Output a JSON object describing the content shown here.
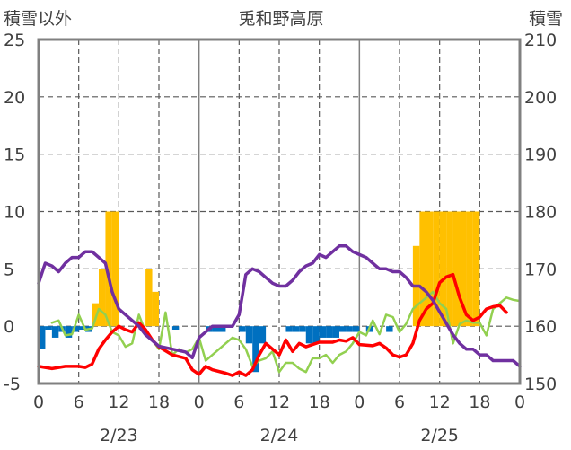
{
  "chart_data": {
    "type": "bar+line",
    "title": "兎和野高原",
    "left_axis_label": "積雪以外",
    "right_axis_label": "積雪",
    "left_ylim": [
      -5,
      25
    ],
    "left_ticks": [
      "25",
      "20",
      "15",
      "10",
      "5",
      "0",
      "-5"
    ],
    "right_ylim": [
      150,
      210
    ],
    "right_ticks": [
      "210",
      "200",
      "190",
      "180",
      "170",
      "160",
      "150"
    ],
    "x_range_hours": [
      0,
      72
    ],
    "x_ticks": [
      "0",
      "6",
      "12",
      "18",
      "0",
      "6",
      "12",
      "18",
      "0",
      "6",
      "12",
      "18",
      "0"
    ],
    "date_labels": [
      "2/23",
      "2/24",
      "2/25"
    ],
    "grid": true,
    "colors": {
      "snow_bars": "#ffc000",
      "negative_bars": "#0070c0",
      "red_line": "#ff0000",
      "green_line": "#92d050",
      "purple_line": "#7030a0",
      "frame": "#808080"
    },
    "bars": [
      {
        "x": 0,
        "y": -2
      },
      {
        "x": 1,
        "y": -0.3
      },
      {
        "x": 2,
        "y": -1
      },
      {
        "x": 3,
        "y": -0.5
      },
      {
        "x": 4,
        "y": -1
      },
      {
        "x": 5,
        "y": -0.5
      },
      {
        "x": 6,
        "y": -0.3
      },
      {
        "x": 7,
        "y": -0.5
      },
      {
        "x": 8,
        "y": 2
      },
      {
        "x": 9,
        "y": 5
      },
      {
        "x": 10,
        "y": 10
      },
      {
        "x": 11,
        "y": 10
      },
      {
        "x": 15,
        "y": -0.3
      },
      {
        "x": 16,
        "y": 5
      },
      {
        "x": 17,
        "y": 3
      },
      {
        "x": 20,
        "y": -0.3
      },
      {
        "x": 25,
        "y": -0.5
      },
      {
        "x": 26,
        "y": -0.5
      },
      {
        "x": 27,
        "y": -0.5
      },
      {
        "x": 30,
        "y": -0.5
      },
      {
        "x": 31,
        "y": -1.5
      },
      {
        "x": 32,
        "y": -4
      },
      {
        "x": 33,
        "y": -1.5
      },
      {
        "x": 37,
        "y": -0.5
      },
      {
        "x": 38,
        "y": -0.5
      },
      {
        "x": 39,
        "y": -0.5
      },
      {
        "x": 40,
        "y": -1.5
      },
      {
        "x": 41,
        "y": -1.5
      },
      {
        "x": 42,
        "y": -1
      },
      {
        "x": 43,
        "y": -1
      },
      {
        "x": 44,
        "y": -1
      },
      {
        "x": 45,
        "y": -0.5
      },
      {
        "x": 46,
        "y": -0.5
      },
      {
        "x": 47,
        "y": -0.5
      },
      {
        "x": 49,
        "y": -0.5
      },
      {
        "x": 52,
        "y": -0.5
      },
      {
        "x": 56,
        "y": 7
      },
      {
        "x": 57,
        "y": 10
      },
      {
        "x": 58,
        "y": 10
      },
      {
        "x": 59,
        "y": 10
      },
      {
        "x": 60,
        "y": 10
      },
      {
        "x": 61,
        "y": 10
      },
      {
        "x": 62,
        "y": 10
      },
      {
        "x": 63,
        "y": 10
      },
      {
        "x": 64,
        "y": 10
      },
      {
        "x": 65,
        "y": 10
      }
    ],
    "red_line": [
      {
        "x": 0,
        "y": -3.5
      },
      {
        "x": 2,
        "y": -3.7
      },
      {
        "x": 4,
        "y": -3.5
      },
      {
        "x": 6,
        "y": -3.5
      },
      {
        "x": 7,
        "y": -3.6
      },
      {
        "x": 8,
        "y": -3.3
      },
      {
        "x": 9,
        "y": -2
      },
      {
        "x": 10,
        "y": -1.2
      },
      {
        "x": 11,
        "y": -0.5
      },
      {
        "x": 12,
        "y": 0
      },
      {
        "x": 13,
        "y": -0.3
      },
      {
        "x": 14,
        "y": -0.5
      },
      {
        "x": 15,
        "y": 0.3
      },
      {
        "x": 16,
        "y": -0.3
      },
      {
        "x": 17,
        "y": -1.2
      },
      {
        "x": 18,
        "y": -1.8
      },
      {
        "x": 20,
        "y": -2.5
      },
      {
        "x": 22,
        "y": -2.8
      },
      {
        "x": 23,
        "y": -3.8
      },
      {
        "x": 24,
        "y": -4.2
      },
      {
        "x": 25,
        "y": -3.5
      },
      {
        "x": 26,
        "y": -3.8
      },
      {
        "x": 28,
        "y": -4.1
      },
      {
        "x": 29,
        "y": -4.3
      },
      {
        "x": 30,
        "y": -4
      },
      {
        "x": 31,
        "y": -4.3
      },
      {
        "x": 32,
        "y": -3.8
      },
      {
        "x": 33,
        "y": -2.5
      },
      {
        "x": 34,
        "y": -1.5
      },
      {
        "x": 35,
        "y": -2
      },
      {
        "x": 36,
        "y": -2.5
      },
      {
        "x": 37,
        "y": -1.2
      },
      {
        "x": 38,
        "y": -2.2
      },
      {
        "x": 39,
        "y": -1.5
      },
      {
        "x": 40,
        "y": -1.8
      },
      {
        "x": 42,
        "y": -1.4
      },
      {
        "x": 44,
        "y": -1.4
      },
      {
        "x": 45,
        "y": -1.2
      },
      {
        "x": 46,
        "y": -1.3
      },
      {
        "x": 47,
        "y": -1
      },
      {
        "x": 48,
        "y": -1.6
      },
      {
        "x": 50,
        "y": -1.7
      },
      {
        "x": 51,
        "y": -1.5
      },
      {
        "x": 52,
        "y": -1.9
      },
      {
        "x": 53,
        "y": -2.5
      },
      {
        "x": 54,
        "y": -2.7
      },
      {
        "x": 55,
        "y": -2.5
      },
      {
        "x": 56,
        "y": -1.5
      },
      {
        "x": 57,
        "y": 0.5
      },
      {
        "x": 58,
        "y": 1.5
      },
      {
        "x": 59,
        "y": 2
      },
      {
        "x": 60,
        "y": 3.8
      },
      {
        "x": 61,
        "y": 4.3
      },
      {
        "x": 62,
        "y": 4.5
      },
      {
        "x": 63,
        "y": 2.5
      },
      {
        "x": 64,
        "y": 1
      },
      {
        "x": 65,
        "y": 0.5
      },
      {
        "x": 66,
        "y": 0.8
      },
      {
        "x": 67,
        "y": 1.5
      },
      {
        "x": 68,
        "y": 1.7
      },
      {
        "x": 69,
        "y": 1.8
      },
      {
        "x": 70,
        "y": 1.2
      }
    ],
    "green_line": [
      {
        "x": 2,
        "y": 0.3
      },
      {
        "x": 3,
        "y": 0.5
      },
      {
        "x": 4,
        "y": -0.8
      },
      {
        "x": 5,
        "y": -0.7
      },
      {
        "x": 6,
        "y": 1
      },
      {
        "x": 7,
        "y": -0.3
      },
      {
        "x": 8,
        "y": -0.2
      },
      {
        "x": 9,
        "y": 1.5
      },
      {
        "x": 10,
        "y": 1
      },
      {
        "x": 11,
        "y": -0.5
      },
      {
        "x": 12,
        "y": -0.8
      },
      {
        "x": 13,
        "y": -1.8
      },
      {
        "x": 14,
        "y": -1.5
      },
      {
        "x": 15,
        "y": 1
      },
      {
        "x": 16,
        "y": -0.5
      },
      {
        "x": 17,
        "y": -1.2
      },
      {
        "x": 18,
        "y": -2
      },
      {
        "x": 19,
        "y": 1.2
      },
      {
        "x": 20,
        "y": -2.5
      },
      {
        "x": 21,
        "y": -2
      },
      {
        "x": 22,
        "y": -2.3
      },
      {
        "x": 23,
        "y": -2
      },
      {
        "x": 24,
        "y": -1
      },
      {
        "x": 25,
        "y": -3
      },
      {
        "x": 26,
        "y": -2.5
      },
      {
        "x": 28,
        "y": -1.5
      },
      {
        "x": 29,
        "y": -1
      },
      {
        "x": 30,
        "y": -1.2
      },
      {
        "x": 31,
        "y": -2
      },
      {
        "x": 32,
        "y": -3.5
      },
      {
        "x": 33,
        "y": -3
      },
      {
        "x": 34,
        "y": -2.8
      },
      {
        "x": 35,
        "y": -2.2
      },
      {
        "x": 36,
        "y": -4
      },
      {
        "x": 37,
        "y": -3.2
      },
      {
        "x": 38,
        "y": -3.2
      },
      {
        "x": 39,
        "y": -3.7
      },
      {
        "x": 40,
        "y": -4
      },
      {
        "x": 41,
        "y": -2.8
      },
      {
        "x": 42,
        "y": -2.8
      },
      {
        "x": 43,
        "y": -2.5
      },
      {
        "x": 44,
        "y": -3.2
      },
      {
        "x": 45,
        "y": -2.5
      },
      {
        "x": 46,
        "y": -2.2
      },
      {
        "x": 47,
        "y": -1.5
      },
      {
        "x": 48,
        "y": -0.5
      },
      {
        "x": 49,
        "y": -0.8
      },
      {
        "x": 50,
        "y": 0.5
      },
      {
        "x": 51,
        "y": -0.7
      },
      {
        "x": 52,
        "y": 1
      },
      {
        "x": 53,
        "y": 0.8
      },
      {
        "x": 54,
        "y": -0.5
      },
      {
        "x": 55,
        "y": 0.2
      },
      {
        "x": 56,
        "y": 1.5
      },
      {
        "x": 57,
        "y": 2
      },
      {
        "x": 58,
        "y": 2.5
      },
      {
        "x": 59,
        "y": 3
      },
      {
        "x": 60,
        "y": 2
      },
      {
        "x": 61,
        "y": 1.5
      },
      {
        "x": 62,
        "y": -1.5
      },
      {
        "x": 63,
        "y": 0.2
      },
      {
        "x": 64,
        "y": 0.5
      },
      {
        "x": 65,
        "y": 0.3
      },
      {
        "x": 66,
        "y": 0.3
      },
      {
        "x": 67,
        "y": -0.8
      },
      {
        "x": 68,
        "y": 1.5
      },
      {
        "x": 69,
        "y": 2
      },
      {
        "x": 70,
        "y": 2.5
      },
      {
        "x": 71,
        "y": 2.3
      },
      {
        "x": 72,
        "y": 2.2
      }
    ],
    "purple_line_snow_depth": [
      {
        "x": 0,
        "y": 167.5
      },
      {
        "x": 1,
        "y": 171
      },
      {
        "x": 2,
        "y": 170.5
      },
      {
        "x": 3,
        "y": 169.5
      },
      {
        "x": 4,
        "y": 171
      },
      {
        "x": 5,
        "y": 172
      },
      {
        "x": 6,
        "y": 172
      },
      {
        "x": 7,
        "y": 173
      },
      {
        "x": 8,
        "y": 173
      },
      {
        "x": 9,
        "y": 172
      },
      {
        "x": 10,
        "y": 171
      },
      {
        "x": 11,
        "y": 166
      },
      {
        "x": 12,
        "y": 163
      },
      {
        "x": 13,
        "y": 162
      },
      {
        "x": 14,
        "y": 161
      },
      {
        "x": 15,
        "y": 160
      },
      {
        "x": 16,
        "y": 158.5
      },
      {
        "x": 17,
        "y": 157.5
      },
      {
        "x": 18,
        "y": 156.5
      },
      {
        "x": 20,
        "y": 156
      },
      {
        "x": 22,
        "y": 155.5
      },
      {
        "x": 23,
        "y": 154.5
      },
      {
        "x": 24,
        "y": 158
      },
      {
        "x": 25,
        "y": 159
      },
      {
        "x": 26,
        "y": 160
      },
      {
        "x": 28,
        "y": 160
      },
      {
        "x": 29,
        "y": 160
      },
      {
        "x": 30,
        "y": 162
      },
      {
        "x": 31,
        "y": 169
      },
      {
        "x": 32,
        "y": 170
      },
      {
        "x": 33,
        "y": 169.5
      },
      {
        "x": 34,
        "y": 168.5
      },
      {
        "x": 35,
        "y": 167.5
      },
      {
        "x": 36,
        "y": 167
      },
      {
        "x": 37,
        "y": 167
      },
      {
        "x": 38,
        "y": 168
      },
      {
        "x": 39,
        "y": 169.5
      },
      {
        "x": 40,
        "y": 170.5
      },
      {
        "x": 41,
        "y": 171
      },
      {
        "x": 42,
        "y": 172.5
      },
      {
        "x": 43,
        "y": 172
      },
      {
        "x": 44,
        "y": 173
      },
      {
        "x": 45,
        "y": 174
      },
      {
        "x": 46,
        "y": 174
      },
      {
        "x": 47,
        "y": 173
      },
      {
        "x": 48,
        "y": 172.5
      },
      {
        "x": 49,
        "y": 172
      },
      {
        "x": 50,
        "y": 171
      },
      {
        "x": 51,
        "y": 170
      },
      {
        "x": 52,
        "y": 170
      },
      {
        "x": 53,
        "y": 169.5
      },
      {
        "x": 54,
        "y": 169.5
      },
      {
        "x": 55,
        "y": 168.5
      },
      {
        "x": 56,
        "y": 167
      },
      {
        "x": 57,
        "y": 167
      },
      {
        "x": 58,
        "y": 166
      },
      {
        "x": 59,
        "y": 164.5
      },
      {
        "x": 60,
        "y": 162.5
      },
      {
        "x": 61,
        "y": 160.5
      },
      {
        "x": 62,
        "y": 158.5
      },
      {
        "x": 63,
        "y": 157
      },
      {
        "x": 64,
        "y": 156
      },
      {
        "x": 65,
        "y": 156
      },
      {
        "x": 66,
        "y": 155
      },
      {
        "x": 67,
        "y": 155
      },
      {
        "x": 68,
        "y": 154
      },
      {
        "x": 69,
        "y": 154
      },
      {
        "x": 70,
        "y": 154
      },
      {
        "x": 71,
        "y": 154
      },
      {
        "x": 72,
        "y": 153
      }
    ]
  }
}
